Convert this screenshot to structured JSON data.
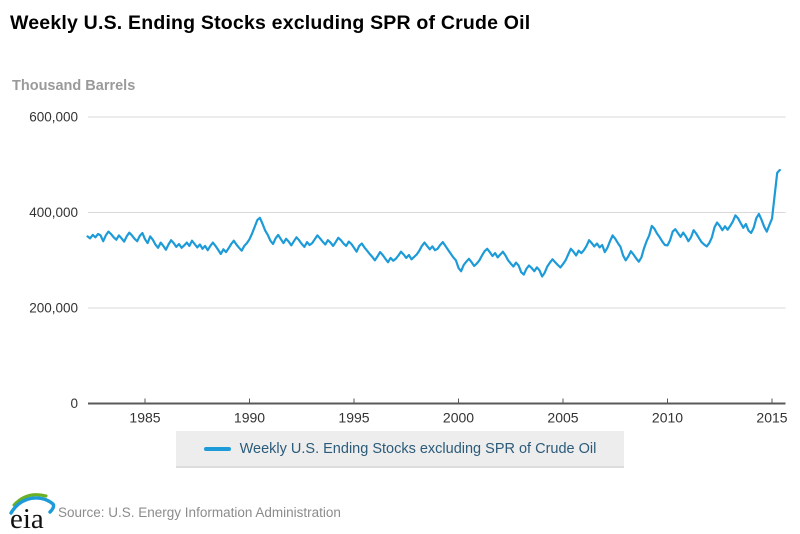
{
  "title": "Weekly U.S. Ending Stocks excluding SPR of Crude Oil",
  "footer": {
    "logo_text": "eia",
    "source": "Source: U.S. Energy Information Administration"
  },
  "colors": {
    "line": "#1d9bd8",
    "gridline": "#d9d9d9",
    "axis": "#595959",
    "tick_label": "#333333",
    "legend_text": "#2b5b79",
    "legend_bg": "#ededed",
    "logo_green": "#6ab023",
    "logo_blue": "#1d9bd8"
  },
  "chart_data": {
    "type": "line",
    "title": "Weekly U.S. Ending Stocks excluding SPR of Crude Oil",
    "ylabel": "Thousand Barrels",
    "xlabel": "",
    "legend": "Weekly U.S. Ending Stocks excluding SPR of Crude Oil",
    "legend_position": "bottom",
    "grid": true,
    "ylim": [
      0,
      600000
    ],
    "x_range": [
      1982.25,
      2015.6
    ],
    "y_ticks": [
      {
        "value": 0,
        "label": "0"
      },
      {
        "value": 200000,
        "label": "200,000"
      },
      {
        "value": 400000,
        "label": "400,000"
      },
      {
        "value": 600000,
        "label": "600,000"
      }
    ],
    "x_ticks": [
      {
        "value": 1985,
        "label": "1985"
      },
      {
        "value": 1990,
        "label": "1990"
      },
      {
        "value": 1995,
        "label": "1995"
      },
      {
        "value": 2000,
        "label": "2000"
      },
      {
        "value": 2005,
        "label": "2005"
      },
      {
        "value": 2010,
        "label": "2010"
      },
      {
        "value": 2015,
        "label": "2015"
      }
    ],
    "series": [
      {
        "name": "Weekly U.S. Ending Stocks excluding SPR of Crude Oil",
        "x_start": 1982.25,
        "x_step": 0.125,
        "values": [
          350000,
          346000,
          353000,
          348000,
          355000,
          352000,
          340000,
          352000,
          360000,
          355000,
          348000,
          343000,
          352000,
          346000,
          339000,
          350000,
          358000,
          352000,
          345000,
          340000,
          351000,
          357000,
          344000,
          336000,
          350000,
          343000,
          333000,
          326000,
          337000,
          330000,
          322000,
          333000,
          342000,
          336000,
          328000,
          334000,
          326000,
          331000,
          337000,
          330000,
          341000,
          334000,
          327000,
          333000,
          324000,
          330000,
          321000,
          330000,
          337000,
          330000,
          322000,
          313000,
          323000,
          317000,
          325000,
          334000,
          341000,
          333000,
          326000,
          320000,
          330000,
          336000,
          344000,
          356000,
          370000,
          384000,
          389000,
          376000,
          362000,
          353000,
          341000,
          334000,
          346000,
          353000,
          344000,
          336000,
          345000,
          339000,
          331000,
          340000,
          348000,
          342000,
          334000,
          328000,
          338000,
          332000,
          336000,
          344000,
          352000,
          346000,
          339000,
          333000,
          342000,
          337000,
          330000,
          338000,
          347000,
          342000,
          335000,
          330000,
          339000,
          334000,
          326000,
          318000,
          330000,
          335000,
          327000,
          320000,
          313000,
          307000,
          300000,
          308000,
          317000,
          311000,
          303000,
          296000,
          305000,
          299000,
          303000,
          310000,
          318000,
          312000,
          305000,
          311000,
          302000,
          307000,
          312000,
          320000,
          330000,
          337000,
          330000,
          323000,
          329000,
          321000,
          324000,
          332000,
          338000,
          330000,
          322000,
          314000,
          306000,
          300000,
          284000,
          277000,
          290000,
          297000,
          303000,
          296000,
          288000,
          293000,
          300000,
          310000,
          319000,
          324000,
          317000,
          309000,
          315000,
          306000,
          312000,
          318000,
          310000,
          300000,
          293000,
          287000,
          295000,
          289000,
          275000,
          270000,
          282000,
          289000,
          284000,
          277000,
          285000,
          279000,
          266000,
          274000,
          287000,
          295000,
          302000,
          296000,
          290000,
          285000,
          292000,
          300000,
          312000,
          324000,
          318000,
          310000,
          320000,
          315000,
          321000,
          330000,
          342000,
          336000,
          329000,
          335000,
          327000,
          332000,
          317000,
          326000,
          340000,
          352000,
          345000,
          336000,
          328000,
          310000,
          300000,
          308000,
          319000,
          312000,
          304000,
          297000,
          306000,
          325000,
          340000,
          352000,
          372000,
          366000,
          356000,
          348000,
          339000,
          332000,
          331000,
          342000,
          360000,
          365000,
          357000,
          349000,
          358000,
          350000,
          340000,
          348000,
          363000,
          356000,
          347000,
          338000,
          333000,
          329000,
          336000,
          348000,
          369000,
          379000,
          372000,
          363000,
          371000,
          364000,
          372000,
          381000,
          394000,
          388000,
          378000,
          368000,
          376000,
          362000,
          357000,
          368000,
          388000,
          397000,
          385000,
          370000,
          360000,
          374000,
          387000,
          435000,
          483000,
          489000
        ]
      }
    ]
  }
}
